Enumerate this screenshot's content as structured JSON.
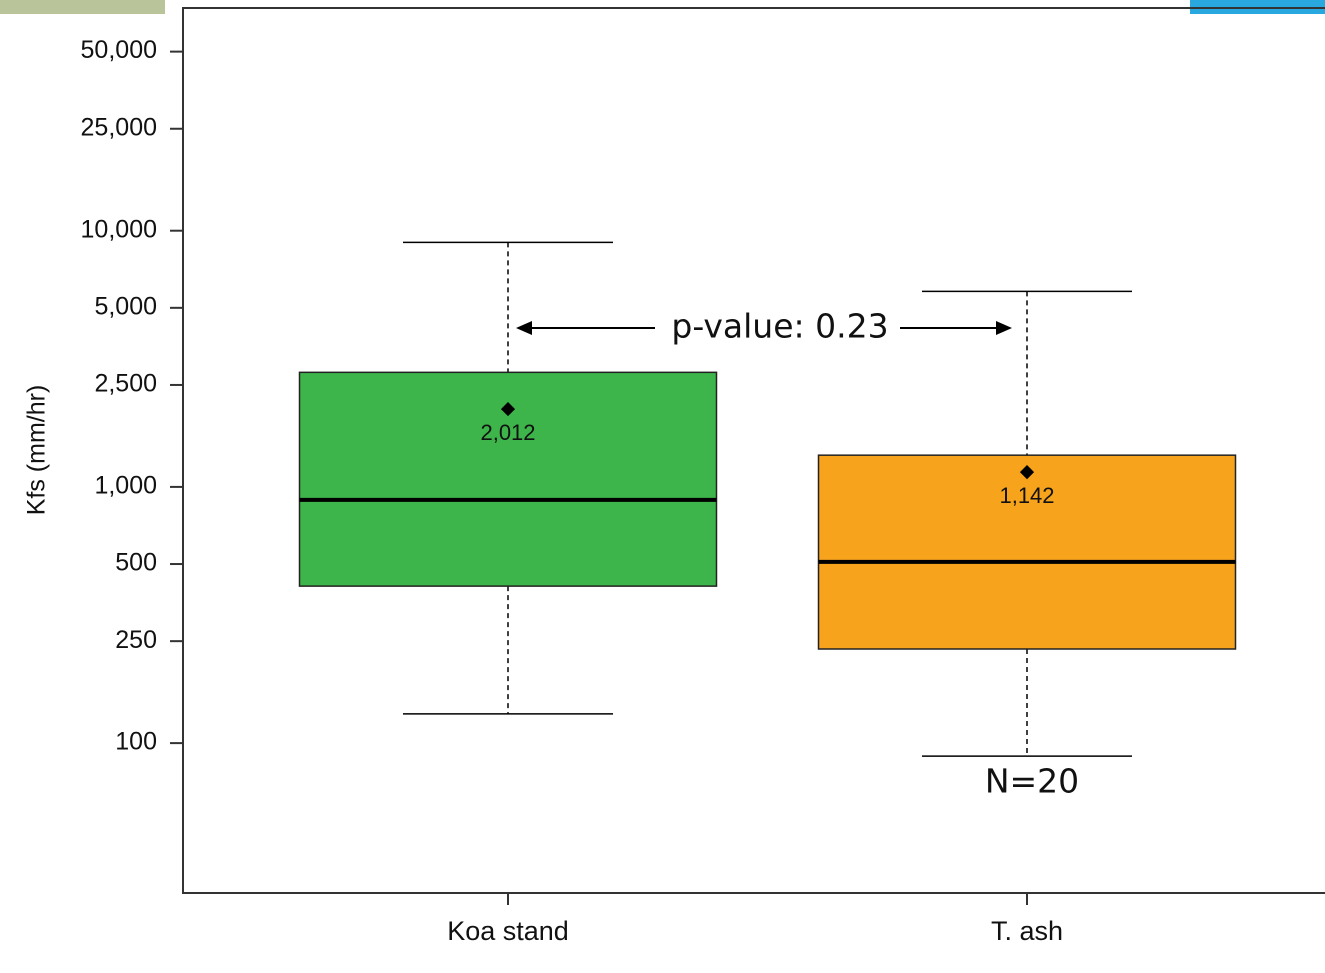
{
  "chart_data": {
    "type": "box",
    "ylabel": "Kfs (mm/hr)",
    "categories": [
      "Koa stand",
      "T. ash"
    ],
    "colors": [
      "#3db54a",
      "#f7a31c"
    ],
    "whisker_high": [
      9000,
      5800
    ],
    "q3": [
      2800,
      1330
    ],
    "median": [
      890,
      510
    ],
    "q1": [
      410,
      233
    ],
    "whisker_low": [
      130,
      89
    ],
    "mean": [
      2012,
      1142
    ],
    "value_labels": [
      "2,012",
      "1,142"
    ],
    "log_scale": true,
    "ylim": [
      26,
      74000
    ],
    "yticks": [
      {
        "value": 50000,
        "label": "50,000"
      },
      {
        "value": 25000,
        "label": "25,000"
      },
      {
        "value": 10000,
        "label": "10,000"
      },
      {
        "value": 5000,
        "label": "5,000"
      },
      {
        "value": 2500,
        "label": "2,500"
      },
      {
        "value": 1000,
        "label": "1,000"
      },
      500,
      250,
      100
    ],
    "annotations": [
      "p-value: 0.23",
      "N=20"
    ]
  }
}
